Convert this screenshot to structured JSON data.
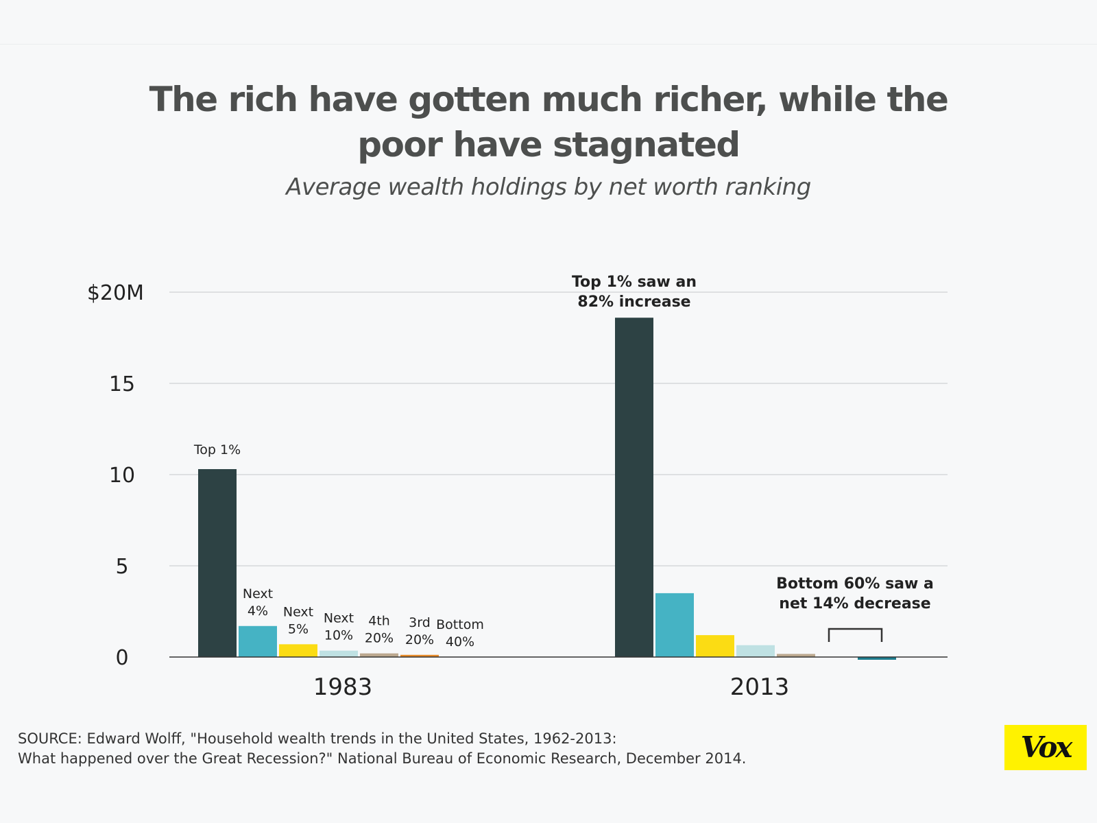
{
  "title_line1": "The rich have gotten much richer, while the",
  "title_line2": "poor have stagnated",
  "subtitle": "Average wealth holdings by net worth ranking",
  "source_line1": "SOURCE: Edward Wolff, \"Household wealth trends in the United States, 1962-2013:",
  "source_line2": "What happened over the Great Recession?\" National Bureau of Economic Research, December 2014.",
  "logo": "Vox",
  "colors": {
    "background": "#f7f8f9",
    "grid": "#d5d8db",
    "axis": "#333333",
    "logo_bg": "#fff200",
    "series": [
      "#2d4244",
      "#45b3c4",
      "#fbdc14",
      "#bfe1e3",
      "#bba88f",
      "#e58a29",
      "#1e7d8e"
    ]
  },
  "chart_data": {
    "type": "bar",
    "title": "The rich have gotten much richer, while the poor have stagnated",
    "subtitle": "Average wealth holdings by net worth ranking",
    "categories": [
      "1983",
      "2013"
    ],
    "series": [
      {
        "name": "Top 1%",
        "label_lines": [
          "Top 1%"
        ],
        "values": [
          10.3,
          18.6
        ]
      },
      {
        "name": "Next 4%",
        "label_lines": [
          "Next",
          "4%"
        ],
        "values": [
          1.7,
          3.5
        ]
      },
      {
        "name": "Next 5%",
        "label_lines": [
          "Next",
          "5%"
        ],
        "values": [
          0.7,
          1.2
        ]
      },
      {
        "name": "Next 10%",
        "label_lines": [
          "Next",
          "10%"
        ],
        "values": [
          0.35,
          0.65
        ]
      },
      {
        "name": "4th 20%",
        "label_lines": [
          "4th",
          "20%"
        ],
        "values": [
          0.2,
          0.17
        ]
      },
      {
        "name": "3rd 20%",
        "label_lines": [
          "3rd",
          "20%"
        ],
        "values": [
          0.12,
          0.0
        ]
      },
      {
        "name": "Bottom 40%",
        "label_lines": [
          "Bottom",
          "40%"
        ],
        "values": [
          0.0,
          -0.15
        ]
      }
    ],
    "yticks": [
      {
        "value": 0,
        "label": "0"
      },
      {
        "value": 5,
        "label": "5"
      },
      {
        "value": 10,
        "label": "10"
      },
      {
        "value": 15,
        "label": "15"
      },
      {
        "value": 20,
        "label": "$20M"
      }
    ],
    "ylim": [
      0,
      20
    ],
    "grid": true,
    "legend": "none (labels above 1983 bars)",
    "annotations": {
      "top": [
        "Top 1% saw an",
        "82% increase"
      ],
      "bottom": [
        "Bottom 60% saw a",
        "net 14% decrease"
      ]
    }
  }
}
